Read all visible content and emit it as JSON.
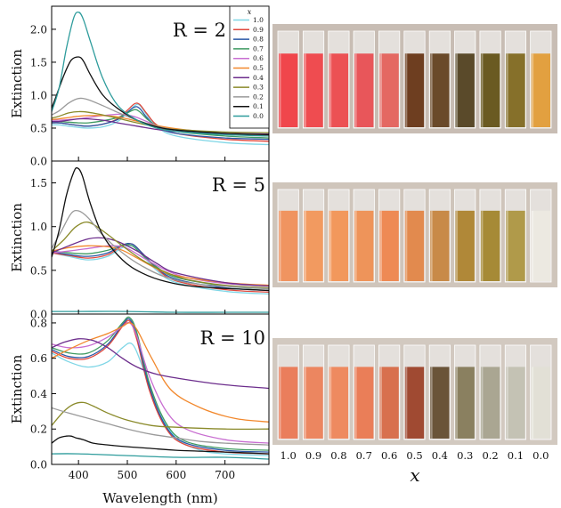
{
  "series_labels": [
    "1.0",
    "0.9",
    "0.8",
    "0.7",
    "0.6",
    "0.5",
    "0.4",
    "0.3",
    "0.2",
    "0.1",
    "0.0"
  ],
  "series_colors": [
    "#7fd6e6",
    "#e0473c",
    "#2a57a6",
    "#3f9a62",
    "#c86ed1",
    "#f2882c",
    "#6c2d8c",
    "#8a8a2a",
    "#9a9a9a",
    "#111111",
    "#2e9c9c"
  ],
  "legend_title": "x",
  "photo_xlabel": "x",
  "chart_data": [
    {
      "type": "line",
      "panel_label": "R = 2",
      "xlabel": "",
      "ylabel": "Extinction",
      "xlim": [
        345,
        790
      ],
      "ylim": [
        0,
        2.35
      ],
      "yticks": [
        "0.0",
        "0.5",
        "1.0",
        "1.5",
        "2.0"
      ],
      "ytick_values": [
        0,
        0.5,
        1.0,
        1.5,
        2.0
      ],
      "xticks": [
        "400",
        "500",
        "600",
        "700"
      ],
      "xtick_values": [
        400,
        500,
        600,
        700
      ],
      "series": [
        {
          "name": "1.0",
          "x": [
            345,
            360,
            380,
            400,
            420,
            450,
            480,
            500,
            515,
            525,
            540,
            560,
            600,
            700,
            790
          ],
          "y": [
            0.55,
            0.55,
            0.53,
            0.51,
            0.5,
            0.52,
            0.6,
            0.73,
            0.84,
            0.85,
            0.7,
            0.52,
            0.38,
            0.28,
            0.25
          ]
        },
        {
          "name": "0.9",
          "x": [
            345,
            360,
            380,
            400,
            420,
            450,
            480,
            500,
            515,
            525,
            540,
            560,
            600,
            700,
            790
          ],
          "y": [
            0.58,
            0.58,
            0.56,
            0.54,
            0.53,
            0.56,
            0.64,
            0.77,
            0.87,
            0.86,
            0.72,
            0.55,
            0.42,
            0.33,
            0.3
          ]
        },
        {
          "name": "0.8",
          "x": [
            345,
            360,
            380,
            400,
            420,
            450,
            480,
            500,
            515,
            525,
            540,
            560,
            600,
            700,
            790
          ],
          "y": [
            0.58,
            0.58,
            0.56,
            0.54,
            0.53,
            0.56,
            0.63,
            0.74,
            0.82,
            0.8,
            0.66,
            0.52,
            0.42,
            0.35,
            0.33
          ]
        },
        {
          "name": "0.7",
          "x": [
            345,
            360,
            380,
            400,
            420,
            450,
            480,
            500,
            515,
            525,
            540,
            560,
            600,
            700,
            790
          ],
          "y": [
            0.6,
            0.6,
            0.59,
            0.58,
            0.58,
            0.61,
            0.66,
            0.73,
            0.78,
            0.75,
            0.64,
            0.54,
            0.45,
            0.38,
            0.35
          ]
        },
        {
          "name": "0.6",
          "x": [
            345,
            360,
            380,
            400,
            420,
            450,
            480,
            500,
            520,
            540,
            560,
            600,
            700,
            790
          ],
          "y": [
            0.62,
            0.62,
            0.63,
            0.64,
            0.66,
            0.69,
            0.71,
            0.7,
            0.66,
            0.6,
            0.54,
            0.47,
            0.41,
            0.38
          ]
        },
        {
          "name": "0.5",
          "x": [
            345,
            360,
            380,
            400,
            420,
            450,
            480,
            500,
            540,
            600,
            700,
            790
          ],
          "y": [
            0.63,
            0.64,
            0.66,
            0.68,
            0.69,
            0.69,
            0.67,
            0.64,
            0.57,
            0.49,
            0.42,
            0.39
          ]
        },
        {
          "name": "0.4",
          "x": [
            345,
            360,
            380,
            400,
            420,
            450,
            480,
            520,
            560,
            600,
            700,
            790
          ],
          "y": [
            0.6,
            0.6,
            0.62,
            0.64,
            0.64,
            0.62,
            0.58,
            0.53,
            0.48,
            0.45,
            0.42,
            0.41
          ]
        },
        {
          "name": "0.3",
          "x": [
            345,
            360,
            380,
            400,
            420,
            450,
            480,
            520,
            560,
            600,
            700,
            790
          ],
          "y": [
            0.65,
            0.68,
            0.73,
            0.75,
            0.74,
            0.7,
            0.65,
            0.58,
            0.52,
            0.48,
            0.44,
            0.43
          ]
        },
        {
          "name": "0.2",
          "x": [
            345,
            360,
            380,
            400,
            420,
            450,
            480,
            520,
            560,
            600,
            700,
            790
          ],
          "y": [
            0.7,
            0.76,
            0.88,
            0.95,
            0.93,
            0.84,
            0.74,
            0.62,
            0.53,
            0.47,
            0.42,
            0.4
          ]
        },
        {
          "name": "0.1",
          "x": [
            345,
            355,
            370,
            385,
            400,
            410,
            425,
            450,
            480,
            520,
            560,
            600,
            700,
            790
          ],
          "y": [
            0.8,
            1.0,
            1.3,
            1.53,
            1.58,
            1.52,
            1.3,
            1.0,
            0.8,
            0.62,
            0.52,
            0.47,
            0.42,
            0.4
          ]
        },
        {
          "name": "0.0",
          "x": [
            345,
            360,
            375,
            390,
            400,
            410,
            425,
            450,
            480,
            520,
            560,
            600,
            700,
            790
          ],
          "y": [
            0.75,
            1.1,
            1.7,
            2.17,
            2.26,
            2.15,
            1.8,
            1.25,
            0.85,
            0.62,
            0.5,
            0.45,
            0.4,
            0.38
          ]
        }
      ]
    },
    {
      "type": "line",
      "panel_label": "R = 5",
      "xlabel": "",
      "ylabel": "Extinction",
      "xlim": [
        345,
        790
      ],
      "ylim": [
        0,
        1.75
      ],
      "yticks": [
        "0.0",
        "0.5",
        "1.0",
        "1.5"
      ],
      "ytick_values": [
        0,
        0.5,
        1.0,
        1.5
      ],
      "xticks": [
        "400",
        "500",
        "600",
        "700"
      ],
      "xtick_values": [
        400,
        500,
        600,
        700
      ],
      "series": [
        {
          "name": "1.0",
          "x": [
            345,
            380,
            420,
            460,
            490,
            510,
            530,
            560,
            600,
            700,
            790
          ],
          "y": [
            0.7,
            0.66,
            0.62,
            0.66,
            0.76,
            0.78,
            0.68,
            0.5,
            0.36,
            0.26,
            0.23
          ]
        },
        {
          "name": "0.9",
          "x": [
            345,
            380,
            420,
            460,
            490,
            510,
            530,
            560,
            600,
            700,
            790
          ],
          "y": [
            0.7,
            0.67,
            0.64,
            0.68,
            0.78,
            0.8,
            0.7,
            0.52,
            0.38,
            0.28,
            0.25
          ]
        },
        {
          "name": "0.8",
          "x": [
            345,
            380,
            420,
            460,
            490,
            510,
            530,
            560,
            600,
            700,
            790
          ],
          "y": [
            0.71,
            0.68,
            0.66,
            0.7,
            0.79,
            0.8,
            0.7,
            0.53,
            0.4,
            0.3,
            0.27
          ]
        },
        {
          "name": "0.7",
          "x": [
            345,
            380,
            420,
            460,
            490,
            510,
            530,
            560,
            600,
            700,
            790
          ],
          "y": [
            0.72,
            0.7,
            0.69,
            0.73,
            0.79,
            0.78,
            0.68,
            0.54,
            0.42,
            0.32,
            0.29
          ]
        },
        {
          "name": "0.6",
          "x": [
            345,
            380,
            420,
            460,
            490,
            510,
            540,
            580,
            620,
            700,
            790
          ],
          "y": [
            0.7,
            0.72,
            0.75,
            0.78,
            0.77,
            0.72,
            0.62,
            0.5,
            0.42,
            0.35,
            0.32
          ]
        },
        {
          "name": "0.5",
          "x": [
            345,
            380,
            420,
            460,
            490,
            520,
            560,
            600,
            700,
            790
          ],
          "y": [
            0.72,
            0.76,
            0.78,
            0.77,
            0.73,
            0.64,
            0.52,
            0.44,
            0.36,
            0.33
          ]
        },
        {
          "name": "0.4",
          "x": [
            345,
            380,
            420,
            450,
            480,
            520,
            560,
            600,
            700,
            790
          ],
          "y": [
            0.7,
            0.78,
            0.86,
            0.87,
            0.83,
            0.72,
            0.58,
            0.47,
            0.36,
            0.32
          ]
        },
        {
          "name": "0.3",
          "x": [
            345,
            370,
            395,
            420,
            450,
            490,
            530,
            570,
            620,
            700,
            790
          ],
          "y": [
            0.72,
            0.85,
            1.0,
            1.05,
            0.95,
            0.78,
            0.62,
            0.5,
            0.4,
            0.33,
            0.3
          ]
        },
        {
          "name": "0.2",
          "x": [
            345,
            365,
            385,
            400,
            420,
            450,
            490,
            530,
            580,
            650,
            790
          ],
          "y": [
            0.75,
            0.95,
            1.15,
            1.18,
            1.1,
            0.9,
            0.7,
            0.55,
            0.42,
            0.34,
            0.29
          ]
        },
        {
          "name": "0.1",
          "x": [
            345,
            360,
            375,
            390,
            398,
            408,
            425,
            450,
            490,
            530,
            580,
            650,
            790
          ],
          "y": [
            0.65,
            0.95,
            1.35,
            1.62,
            1.67,
            1.58,
            1.25,
            0.9,
            0.62,
            0.47,
            0.37,
            0.31,
            0.27
          ]
        },
        {
          "name": "0.0",
          "x": [
            345,
            400,
            500,
            600,
            700,
            790
          ],
          "y": [
            0.03,
            0.03,
            0.03,
            0.02,
            0.02,
            0.02
          ]
        }
      ]
    },
    {
      "type": "line",
      "panel_label": "R = 10",
      "xlabel": "Wavelength (nm)",
      "ylabel": "Extinction",
      "xlim": [
        345,
        790
      ],
      "ylim": [
        0,
        0.85
      ],
      "yticks": [
        "0.0",
        "0.2",
        "0.4",
        "0.6",
        "0.8"
      ],
      "ytick_values": [
        0,
        0.2,
        0.4,
        0.6,
        0.8
      ],
      "xticks": [
        "400",
        "500",
        "600",
        "700"
      ],
      "xtick_values": [
        400,
        500,
        600,
        700
      ],
      "series": [
        {
          "name": "1.0",
          "x": [
            345,
            380,
            420,
            460,
            490,
            510,
            530,
            560,
            600,
            650,
            700,
            790
          ],
          "y": [
            0.63,
            0.58,
            0.55,
            0.58,
            0.66,
            0.68,
            0.56,
            0.32,
            0.15,
            0.08,
            0.06,
            0.05
          ]
        },
        {
          "name": "0.9",
          "x": [
            345,
            380,
            420,
            460,
            490,
            505,
            520,
            545,
            580,
            620,
            700,
            790
          ],
          "y": [
            0.64,
            0.6,
            0.6,
            0.67,
            0.78,
            0.81,
            0.7,
            0.42,
            0.2,
            0.11,
            0.07,
            0.06
          ]
        },
        {
          "name": "0.8",
          "x": [
            345,
            380,
            420,
            460,
            490,
            505,
            520,
            545,
            580,
            620,
            700,
            790
          ],
          "y": [
            0.65,
            0.61,
            0.61,
            0.68,
            0.79,
            0.82,
            0.72,
            0.44,
            0.21,
            0.12,
            0.08,
            0.07
          ]
        },
        {
          "name": "0.7",
          "x": [
            345,
            380,
            420,
            460,
            490,
            505,
            520,
            545,
            580,
            620,
            700,
            790
          ],
          "y": [
            0.66,
            0.63,
            0.63,
            0.7,
            0.8,
            0.83,
            0.74,
            0.46,
            0.23,
            0.13,
            0.09,
            0.08
          ]
        },
        {
          "name": "0.6",
          "x": [
            345,
            380,
            420,
            460,
            490,
            505,
            520,
            545,
            580,
            620,
            700,
            790
          ],
          "y": [
            0.68,
            0.66,
            0.67,
            0.72,
            0.78,
            0.8,
            0.72,
            0.5,
            0.3,
            0.2,
            0.14,
            0.12
          ]
        },
        {
          "name": "0.5",
          "x": [
            345,
            380,
            420,
            460,
            490,
            505,
            520,
            550,
            590,
            650,
            720,
            790
          ],
          "y": [
            0.6,
            0.65,
            0.7,
            0.74,
            0.78,
            0.8,
            0.76,
            0.6,
            0.42,
            0.32,
            0.26,
            0.24
          ]
        },
        {
          "name": "0.4",
          "x": [
            345,
            370,
            400,
            430,
            460,
            490,
            520,
            560,
            620,
            700,
            790
          ],
          "y": [
            0.66,
            0.69,
            0.71,
            0.7,
            0.66,
            0.6,
            0.55,
            0.51,
            0.48,
            0.45,
            0.43
          ]
        },
        {
          "name": "0.3",
          "x": [
            345,
            370,
            390,
            410,
            430,
            460,
            500,
            550,
            600,
            700,
            790
          ],
          "y": [
            0.22,
            0.3,
            0.34,
            0.35,
            0.33,
            0.29,
            0.25,
            0.22,
            0.21,
            0.2,
            0.2
          ]
        },
        {
          "name": "0.2",
          "x": [
            345,
            380,
            420,
            460,
            500,
            550,
            600,
            650,
            700,
            790
          ],
          "y": [
            0.32,
            0.29,
            0.26,
            0.23,
            0.2,
            0.17,
            0.15,
            0.13,
            0.12,
            0.11
          ]
        },
        {
          "name": "0.1",
          "x": [
            345,
            360,
            375,
            385,
            395,
            410,
            430,
            460,
            500,
            550,
            600,
            700,
            790
          ],
          "y": [
            0.12,
            0.15,
            0.16,
            0.16,
            0.15,
            0.14,
            0.12,
            0.11,
            0.1,
            0.09,
            0.08,
            0.07,
            0.06
          ]
        },
        {
          "name": "0.0",
          "x": [
            345,
            400,
            500,
            600,
            700,
            790
          ],
          "y": [
            0.06,
            0.06,
            0.05,
            0.04,
            0.04,
            0.03
          ]
        }
      ]
    }
  ],
  "photo_rows": [
    {
      "cuvette_colors": [
        "#f0464c",
        "#ef4c50",
        "#ec5154",
        "#e8565a",
        "#e46862",
        "#6e3e20",
        "#6a4a2a",
        "#5a4a2a",
        "#6a5a22",
        "#86702a",
        "#e2a040"
      ]
    },
    {
      "cuvette_colors": [
        "#f09460",
        "#f29a60",
        "#f2985c",
        "#ee945a",
        "#ee8a54",
        "#e28a4e",
        "#c88a48",
        "#b08838",
        "#a68a36",
        "#b09a4a",
        "#ece9e1"
      ]
    },
    {
      "cuvette_colors": [
        "#ea7e5c",
        "#ec8660",
        "#ee8a60",
        "#ea7e58",
        "#d8704e",
        "#a04a32",
        "#6a5438",
        "#8a8060",
        "#aaa692",
        "#c4c2b4",
        "#e2e0d6"
      ]
    }
  ]
}
